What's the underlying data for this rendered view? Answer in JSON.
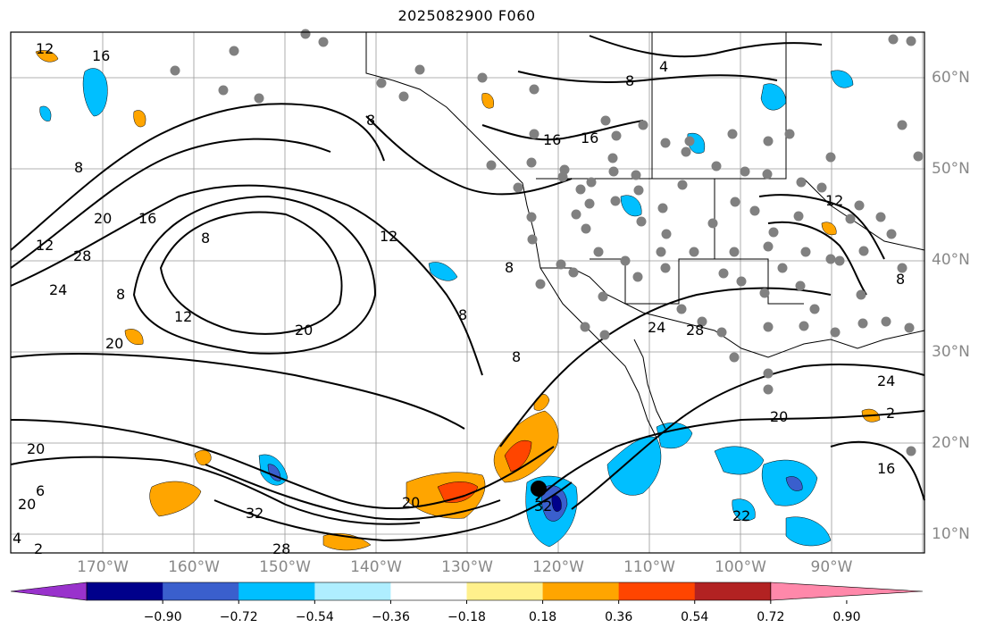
{
  "title": "2025082900 F060",
  "lon_labels": [
    "170°W",
    "160°W",
    "150°W",
    "140°W",
    "130°W",
    "120°W",
    "110°W",
    "100°W",
    "90°W"
  ],
  "lat_labels": [
    "60°N",
    "50°N",
    "40°N",
    "30°N",
    "20°N",
    "10°N"
  ],
  "colorbar": {
    "colors": [
      "#9932cc",
      "#00008b",
      "#3a5fcd",
      "#00bfff",
      "#afeeff",
      "#ffffff",
      "#fff08c",
      "#ffa500",
      "#ff4500",
      "#b22222",
      "#ff88aa"
    ],
    "ticks": [
      "−0.90",
      "−0.72",
      "−0.54",
      "−0.36",
      "−0.18",
      "0.18",
      "0.36",
      "0.54",
      "0.72",
      "0.90"
    ]
  },
  "contour_labels": [
    "12",
    "12",
    "8",
    "16",
    "20",
    "28",
    "24",
    "8",
    "12",
    "20",
    "8",
    "20",
    "8",
    "4",
    "8",
    "16",
    "16",
    "12",
    "8",
    "8",
    "8",
    "12",
    "20",
    "16",
    "6",
    "20",
    "4",
    "2",
    "32",
    "28",
    "20",
    "32",
    "24",
    "28",
    "24",
    "20",
    "16",
    "22",
    "2",
    "8"
  ],
  "colors": {
    "negative_strong": "#3a5fcd",
    "negative": "#00bfff",
    "positive": "#ffa500",
    "positive_strong": "#ff4500",
    "station": "#808080",
    "grid": "#999999"
  }
}
